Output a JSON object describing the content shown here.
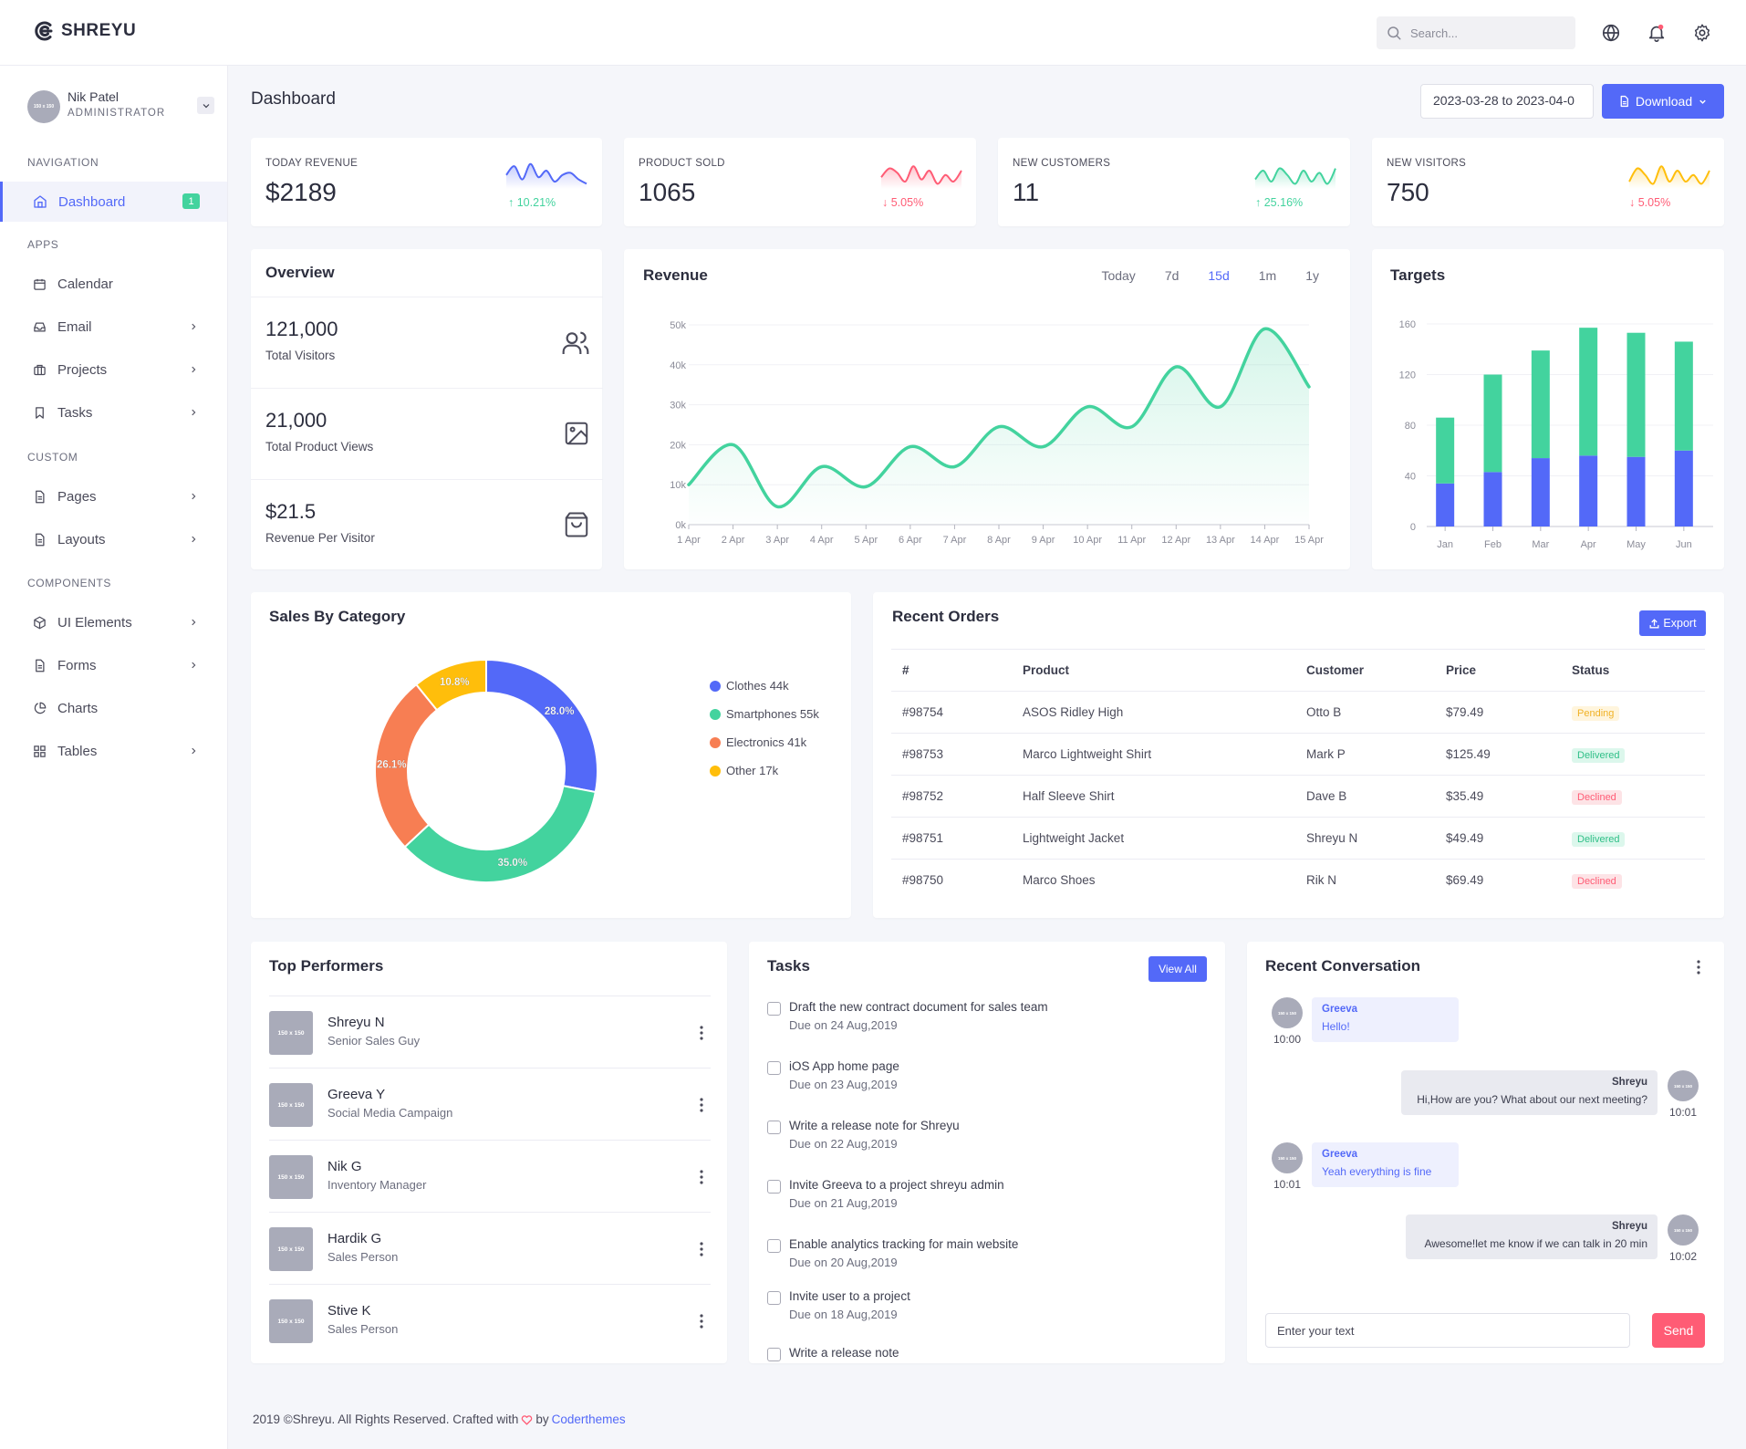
{
  "app": {
    "name": "SHREYU"
  },
  "search": {
    "placeholder": "Search..."
  },
  "user": {
    "name": "Nik Patel",
    "role": "ADMINISTRATOR",
    "avatar_text": "150 x 150"
  },
  "nav": {
    "sections": {
      "navigation": "NAVIGATION",
      "apps": "APPS",
      "custom": "CUSTOM",
      "components": "COMPONENTS"
    },
    "items": [
      {
        "label": "Dashboard",
        "icon": "home-icon",
        "badge": "1",
        "active": true
      },
      {
        "label": "Calendar",
        "icon": "calendar-icon"
      },
      {
        "label": "Email",
        "icon": "inbox-icon"
      },
      {
        "label": "Projects",
        "icon": "briefcase-icon"
      },
      {
        "label": "Tasks",
        "icon": "bookmark-icon"
      },
      {
        "label": "Pages",
        "icon": "file-text-icon"
      },
      {
        "label": "Layouts",
        "icon": "layout-icon"
      },
      {
        "label": "UI Elements",
        "icon": "package-icon"
      },
      {
        "label": "Forms",
        "icon": "file-text-icon"
      },
      {
        "label": "Charts",
        "icon": "pie-chart-icon"
      },
      {
        "label": "Tables",
        "icon": "grid-icon"
      }
    ]
  },
  "page": {
    "title": "Dashboard",
    "date_range": "2023-03-28 to 2023-04-0",
    "download_label": "Download"
  },
  "stats": [
    {
      "label": "TODAY REVENUE",
      "value": "$2189",
      "change": "10.21%",
      "dir": "up",
      "color": "#5369f8"
    },
    {
      "label": "PRODUCT SOLD",
      "value": "1065",
      "change": "5.05%",
      "dir": "down",
      "color": "#ff5c75"
    },
    {
      "label": "NEW CUSTOMERS",
      "value": "11",
      "change": "25.16%",
      "dir": "up",
      "color": "#43d39e"
    },
    {
      "label": "NEW VISITORS",
      "value": "750",
      "change": "5.05%",
      "dir": "down",
      "color": "#ffbe0b"
    }
  ],
  "overview": {
    "title": "Overview",
    "rows": [
      {
        "value": "121,000",
        "label": "Total Visitors",
        "icon": "users-icon"
      },
      {
        "value": "21,000",
        "label": "Total Product Views",
        "icon": "image-icon"
      },
      {
        "value": "$21.5",
        "label": "Revenue Per Visitor",
        "icon": "shopping-bag-icon"
      }
    ]
  },
  "revenue": {
    "title": "Revenue",
    "tabs": [
      "Today",
      "7d",
      "15d",
      "1m",
      "1y"
    ],
    "active_tab": "15d"
  },
  "targets": {
    "title": "Targets"
  },
  "sales": {
    "title": "Sales By Category"
  },
  "orders": {
    "title": "Recent Orders",
    "export_label": "Export",
    "columns": [
      "#",
      "Product",
      "Customer",
      "Price",
      "Status"
    ],
    "rows": [
      {
        "id": "#98754",
        "product": "ASOS Ridley High",
        "customer": "Otto B",
        "price": "$79.49",
        "status": "Pending"
      },
      {
        "id": "#98753",
        "product": "Marco Lightweight Shirt",
        "customer": "Mark P",
        "price": "$125.49",
        "status": "Delivered"
      },
      {
        "id": "#98752",
        "product": "Half Sleeve Shirt",
        "customer": "Dave B",
        "price": "$35.49",
        "status": "Declined"
      },
      {
        "id": "#98751",
        "product": "Lightweight Jacket",
        "customer": "Shreyu N",
        "price": "$49.49",
        "status": "Delivered"
      },
      {
        "id": "#98750",
        "product": "Marco Shoes",
        "customer": "Rik N",
        "price": "$69.49",
        "status": "Declined"
      }
    ]
  },
  "performers": {
    "title": "Top Performers",
    "thumb_text": "150 x 150",
    "rows": [
      {
        "name": "Shreyu N",
        "role": "Senior Sales Guy"
      },
      {
        "name": "Greeva Y",
        "role": "Social Media Campaign"
      },
      {
        "name": "Nik G",
        "role": "Inventory Manager"
      },
      {
        "name": "Hardik G",
        "role": "Sales Person"
      },
      {
        "name": "Stive K",
        "role": "Sales Person"
      }
    ]
  },
  "tasks": {
    "title": "Tasks",
    "view_all_label": "View All",
    "items": [
      {
        "title": "Draft the new contract document for sales team",
        "due": "Due on 24 Aug,2019"
      },
      {
        "title": "iOS App home page",
        "due": "Due on 23 Aug,2019"
      },
      {
        "title": "Write a release note for Shreyu",
        "due": "Due on 22 Aug,2019"
      },
      {
        "title": "Invite Greeva to a project shreyu admin",
        "due": "Due on 21 Aug,2019"
      },
      {
        "title": "Enable analytics tracking for main website",
        "due": "Due on 20 Aug,2019"
      },
      {
        "title": "Invite user to a project",
        "due": "Due on 18 Aug,2019"
      },
      {
        "title": "Write a release note",
        "due": ""
      }
    ]
  },
  "conversation": {
    "title": "Recent Conversation",
    "avatar_text": "150 x 150",
    "messages": [
      {
        "sender": "Greeva",
        "text": "Hello!",
        "time": "10:00",
        "side": "left"
      },
      {
        "sender": "Shreyu",
        "text": "Hi,How are you? What about our next meeting?",
        "time": "10:01",
        "side": "right"
      },
      {
        "sender": "Greeva",
        "text": "Yeah everything is fine",
        "time": "10:01",
        "side": "left"
      },
      {
        "sender": "Shreyu",
        "text": "Awesome!let me know if we can talk in 20 min",
        "time": "10:02",
        "side": "right"
      }
    ],
    "input_placeholder": "Enter your text",
    "send_label": "Send"
  },
  "footer": {
    "text": "2019 ©Shreyu. All Rights Reserved. Crafted with",
    "by": "by",
    "link": "Coderthemes"
  },
  "chart_data": [
    {
      "type": "line",
      "title": "Revenue",
      "x": [
        "1 Apr",
        "2 Apr",
        "3 Apr",
        "4 Apr",
        "5 Apr",
        "6 Apr",
        "7 Apr",
        "8 Apr",
        "9 Apr",
        "10 Apr",
        "11 Apr",
        "12 Apr",
        "13 Apr",
        "14 Apr",
        "15 Apr"
      ],
      "values": [
        10000,
        20000,
        4500,
        14500,
        9500,
        19500,
        14500,
        24500,
        19500,
        29500,
        24500,
        39500,
        29500,
        49000,
        34500
      ],
      "ylim": [
        0,
        50000
      ],
      "yticks": [
        "0k",
        "10k",
        "20k",
        "30k",
        "40k",
        "50k"
      ],
      "color": "#43d39e"
    },
    {
      "type": "bar",
      "title": "Targets",
      "stacked": true,
      "categories": [
        "Jan",
        "Feb",
        "Mar",
        "Apr",
        "May",
        "Jun"
      ],
      "series": [
        {
          "values": [
            34,
            43,
            54,
            56,
            55,
            60
          ],
          "color": "#5369f8"
        },
        {
          "values": [
            52,
            77,
            85,
            101,
            98,
            86
          ],
          "color": "#43d39e"
        }
      ],
      "ylim": [
        0,
        160
      ],
      "yticks": [
        "0",
        "40",
        "80",
        "120",
        "160"
      ]
    },
    {
      "type": "pie",
      "title": "Sales By Category",
      "donut": true,
      "labels": [
        "Clothes 44k",
        "Smartphones 55k",
        "Electronics 41k",
        "Other 17k"
      ],
      "values": [
        44,
        55,
        41,
        17
      ],
      "percent_labels": [
        "28.0%",
        "35.0%",
        "26.1%",
        "10.8%"
      ],
      "colors": [
        "#5369f8",
        "#43d39e",
        "#f77e53",
        "#ffbe0b"
      ]
    }
  ]
}
